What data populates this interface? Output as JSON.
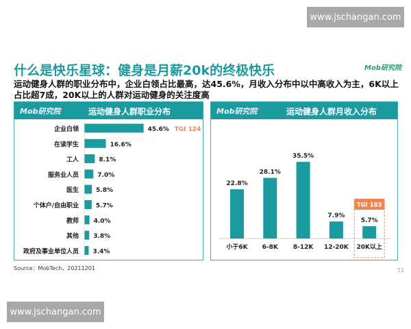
{
  "watermark_top": "www.jschangan.com",
  "watermark_bottom": "www.jschangan.com",
  "logo": "Mob研究院",
  "title": "什么是快乐星球：健身是月薪20k的终极快乐",
  "subtitle": "运动健身人群的职业分布中，企业白领占比最高，达45.6%，月收入分布中以中高收入为主，6K以上占比超7成，20K以上的人群对运动健身的关注度高",
  "source": "Source：MobTech，20211201",
  "page_number": "11",
  "colors": {
    "teal": "#1b9aa0",
    "orange": "#f0834f"
  },
  "chart_data": [
    {
      "type": "bar",
      "orientation": "horizontal",
      "title": "运动健身人群职业分布",
      "categories": [
        "企业白领",
        "在读学生",
        "工人",
        "服务业人员",
        "医生",
        "个体户/自由职业",
        "教师",
        "其他",
        "政府及事业单位人员"
      ],
      "values": [
        45.6,
        16.6,
        8.1,
        7.0,
        5.8,
        5.7,
        4.0,
        3.8,
        3.4
      ],
      "labels": [
        "45.6%",
        "16.6%",
        "8.1%",
        "7.0%",
        "5.8%",
        "5.7%",
        "4.0%",
        "3.8%",
        "3.4%"
      ],
      "annotation": "TGI 124"
    },
    {
      "type": "bar",
      "orientation": "vertical",
      "title": "运动健身人群月收入分布",
      "categories": [
        "小于6K",
        "6-8K",
        "8-12K",
        "12-20K",
        "20K以上"
      ],
      "values": [
        22.8,
        28.1,
        35.5,
        7.9,
        5.7
      ],
      "labels": [
        "22.8%",
        "28.1%",
        "35.5%",
        "7.9%",
        "5.7%"
      ],
      "annotation": "TGI 183"
    }
  ]
}
